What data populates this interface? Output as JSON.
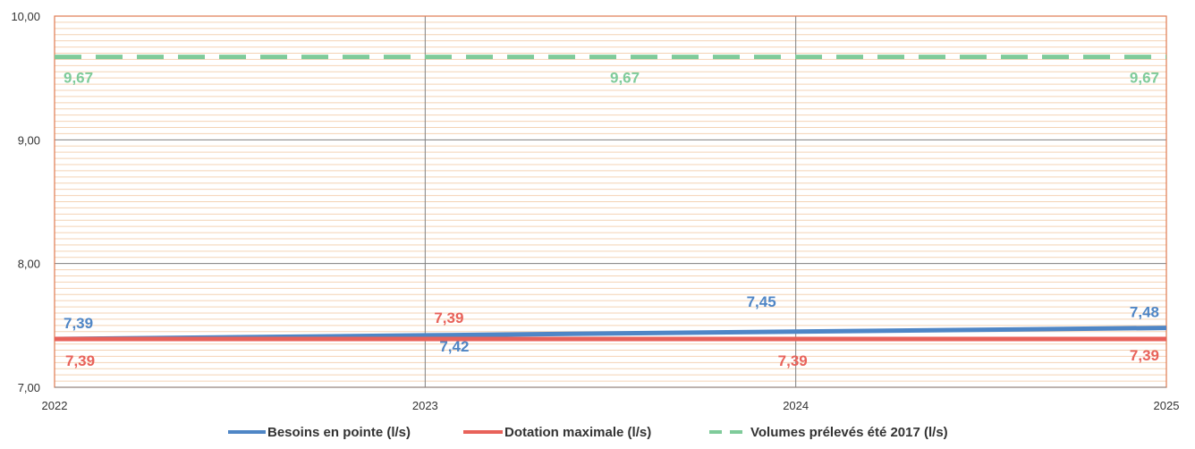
{
  "chart_data": {
    "type": "line",
    "title": "",
    "xlabel": "",
    "ylabel": "",
    "x": [
      2022,
      2023,
      2024,
      2025
    ],
    "x_tick_labels": [
      "2022",
      "2023",
      "2024",
      "2025"
    ],
    "ylim": [
      7.0,
      10.0
    ],
    "y_tick_labels": [
      "7,00",
      "8,00",
      "9,00",
      "10,00"
    ],
    "grid": true,
    "legend_position": "bottom",
    "series": [
      {
        "name": "Besoins en pointe (l/s)",
        "values": [
          7.39,
          7.42,
          7.45,
          7.48
        ],
        "labels": [
          "7,39",
          "7,42",
          "7,45",
          "7,48"
        ],
        "color": "#4f86c6",
        "style": "solid"
      },
      {
        "name": "Dotation maximale (l/s)",
        "values": [
          7.39,
          7.39,
          7.39,
          7.39
        ],
        "labels": [
          "7,39",
          "7,39",
          "7,39",
          "7,39"
        ],
        "color": "#e8625a",
        "style": "solid"
      },
      {
        "name": "Volumes prélevés été 2017 (l/s)",
        "values": [
          9.67,
          9.67,
          9.67,
          9.67
        ],
        "labels": [
          "9,67",
          "9,67",
          "9,67",
          "9,67"
        ],
        "color": "#7fcb9a",
        "style": "dashed"
      }
    ]
  },
  "colors": {
    "frame": "#e07a50",
    "major_grid": "#7f7f7f",
    "minor_grid": "#f4d3b4"
  }
}
